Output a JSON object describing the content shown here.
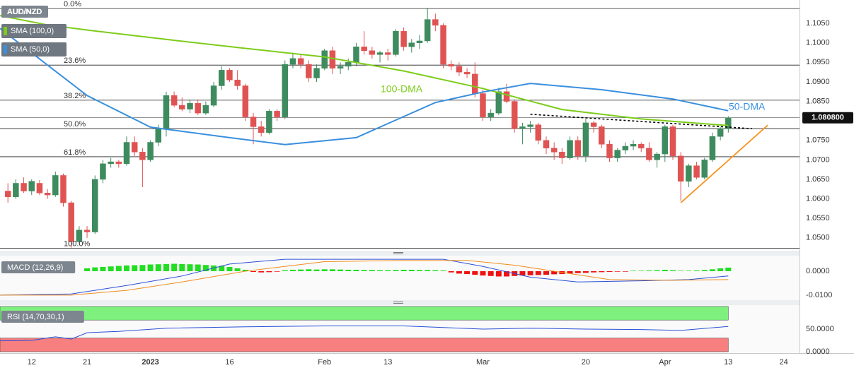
{
  "chart_data": [
    {
      "type": "candlestick",
      "title": "AUD/NZD",
      "up_color": "#3d8b5e",
      "down_color": "#e05353",
      "open": [
        1.062,
        1.0605,
        1.064,
        1.062,
        1.064,
        1.0615,
        1.061,
        1.066,
        1.059,
        1.049,
        1.052,
        1.0515,
        1.065,
        1.069,
        1.0695,
        1.069,
        1.0745,
        1.072,
        1.07,
        1.0745,
        1.078,
        1.0865,
        1.084,
        1.083,
        1.0845,
        1.082,
        1.084,
        1.089,
        1.093,
        1.0905,
        1.089,
        1.081,
        1.0785,
        1.077,
        1.0825,
        1.081,
        1.0945,
        1.096,
        1.0945,
        1.091,
        1.0935,
        1.098,
        1.0935,
        1.094,
        1.095,
        1.099,
        1.098,
        1.097,
        1.0975,
        1.097,
        1.103,
        1.099,
        1.1,
        1.1005,
        1.106,
        1.1045,
        1.0945,
        1.094,
        1.0925,
        1.092,
        1.087,
        1.081,
        1.082,
        1.0875,
        1.085,
        1.078,
        1.0785,
        1.079,
        1.075,
        1.073,
        1.072,
        1.0705,
        1.075,
        1.071,
        1.0795,
        1.0785,
        1.074,
        1.0705,
        1.0725,
        1.0735,
        1.074,
        1.073,
        1.07,
        1.0715,
        1.0785,
        1.071,
        1.0645,
        1.0685,
        1.0655,
        1.07,
        1.076,
        1.078
      ],
      "high": [
        1.064,
        1.065,
        1.0655,
        1.065,
        1.0648,
        1.0625,
        1.067,
        1.0665,
        1.0595,
        1.053,
        1.053,
        1.066,
        1.07,
        1.0705,
        1.07,
        1.076,
        1.076,
        1.073,
        1.075,
        1.079,
        1.0875,
        1.0875,
        1.086,
        1.0855,
        1.0855,
        1.085,
        1.09,
        1.094,
        1.0935,
        1.093,
        1.0895,
        1.082,
        1.08,
        1.083,
        1.083,
        1.0955,
        1.0975,
        1.097,
        1.0955,
        1.0945,
        1.0985,
        1.099,
        1.095,
        1.096,
        1.1,
        1.103,
        1.099,
        1.098,
        1.0985,
        1.1035,
        1.104,
        1.101,
        1.102,
        1.109,
        1.1075,
        1.105,
        1.0955,
        1.095,
        1.0935,
        1.095,
        1.088,
        1.083,
        1.0885,
        1.0895,
        1.0855,
        1.0795,
        1.08,
        1.0795,
        1.076,
        1.0745,
        1.073,
        1.076,
        1.076,
        1.0805,
        1.08,
        1.079,
        1.075,
        1.073,
        1.0745,
        1.075,
        1.0745,
        1.0745,
        1.072,
        1.079,
        1.079,
        1.072,
        1.069,
        1.0695,
        1.0705,
        1.077,
        1.0785,
        1.0812
      ],
      "low": [
        1.059,
        1.06,
        1.0615,
        1.061,
        1.061,
        1.06,
        1.0605,
        1.058,
        1.0475,
        1.0485,
        1.05,
        1.051,
        1.064,
        1.068,
        1.068,
        1.0685,
        1.071,
        1.063,
        1.0695,
        1.0735,
        1.076,
        1.0835,
        1.0825,
        1.082,
        1.0815,
        1.0815,
        1.0835,
        1.088,
        1.09,
        1.088,
        1.08,
        1.074,
        1.076,
        1.0765,
        1.08,
        1.0805,
        1.0935,
        1.0935,
        1.09,
        1.09,
        1.093,
        1.092,
        1.092,
        1.093,
        1.094,
        1.097,
        1.096,
        1.095,
        1.0955,
        1.0965,
        1.098,
        1.0975,
        1.0985,
        1.1,
        1.103,
        1.0935,
        1.093,
        1.0915,
        1.091,
        1.086,
        1.08,
        1.08,
        1.0815,
        1.0845,
        1.077,
        1.074,
        1.077,
        1.074,
        1.0715,
        1.07,
        1.069,
        1.07,
        1.07,
        1.0695,
        1.077,
        1.073,
        1.0695,
        1.0695,
        1.0715,
        1.0725,
        1.072,
        1.0695,
        1.068,
        1.0695,
        1.07,
        1.0595,
        1.063,
        1.065,
        1.065,
        1.0695,
        1.075,
        1.077
      ],
      "close": [
        1.0605,
        1.064,
        1.062,
        1.0645,
        1.0615,
        1.061,
        1.066,
        1.059,
        1.049,
        1.052,
        1.0515,
        1.065,
        1.069,
        1.0695,
        1.069,
        1.0745,
        1.072,
        1.07,
        1.0745,
        1.078,
        1.0865,
        1.084,
        1.083,
        1.0845,
        1.082,
        1.084,
        1.089,
        1.093,
        1.0905,
        1.089,
        1.081,
        1.0785,
        1.077,
        1.0825,
        1.081,
        1.0945,
        1.096,
        1.0945,
        1.091,
        1.0935,
        1.098,
        1.0935,
        1.094,
        1.095,
        1.099,
        1.098,
        1.097,
        1.0975,
        1.097,
        1.103,
        1.099,
        1.1,
        1.1005,
        1.106,
        1.1045,
        1.0945,
        1.094,
        1.0925,
        1.092,
        1.087,
        1.081,
        1.082,
        1.0875,
        1.085,
        1.078,
        1.0785,
        1.079,
        1.075,
        1.073,
        1.072,
        1.0705,
        1.075,
        1.071,
        1.0795,
        1.0785,
        1.074,
        1.0705,
        1.0725,
        1.0735,
        1.074,
        1.073,
        1.07,
        1.0715,
        1.0785,
        1.071,
        1.0645,
        1.0685,
        1.0655,
        1.07,
        1.076,
        1.078,
        1.0808
      ],
      "series": [
        {
          "name": "SMA (100,0)",
          "color": "#7ccc1a",
          "x": [
            -1,
            5,
            10,
            20,
            30,
            40,
            50,
            60,
            70,
            80,
            91
          ],
          "values": [
            1.107,
            1.1046,
            1.1033,
            1.1009,
            1.0986,
            1.0964,
            1.0928,
            1.0883,
            1.0829,
            1.0805,
            1.0788
          ]
        },
        {
          "name": "SMA (50,0)",
          "color": "#3a8fde",
          "x": [
            -1,
            10,
            18,
            28,
            35,
            44,
            48,
            54,
            60,
            66,
            75,
            84,
            91
          ],
          "values": [
            1.1037,
            1.0865,
            1.0784,
            1.0757,
            1.0739,
            1.0757,
            1.0793,
            1.0847,
            1.0874,
            1.0896,
            1.088,
            1.0856,
            1.0826
          ]
        }
      ],
      "annotations": [
        {
          "text": "100-DMA",
          "color": "#7ccc1a"
        },
        {
          "text": "50-DMA",
          "color": "#3a8fde"
        }
      ],
      "fib_levels": [
        {
          "label": "0.0%",
          "value": 1.1088
        },
        {
          "label": "23.6%",
          "value": 1.0943
        },
        {
          "label": "38.2%",
          "value": 1.0853
        },
        {
          "label": "50.0%",
          "value": 1.078
        },
        {
          "label": "61.8%",
          "value": 1.0708
        },
        {
          "label": "100.0%",
          "value": 1.0473
        }
      ],
      "trendlines": [
        {
          "x": [
            66,
            94
          ],
          "values": [
            1.0817,
            1.078
          ],
          "color": "#000000",
          "dashed": true
        },
        {
          "x": [
            85,
            96
          ],
          "values": [
            1.059,
            1.0789
          ],
          "color": "#f7931e",
          "dashed": false
        }
      ],
      "last_price": {
        "value": 1.0808,
        "label": "1.080800"
      },
      "ylim": [
        1.0467,
        1.111
      ],
      "yticks": [
        {
          "value": 1.105,
          "label": "1.1050"
        },
        {
          "value": 1.1,
          "label": "1.1000"
        },
        {
          "value": 1.095,
          "label": "1.0950"
        },
        {
          "value": 1.09,
          "label": "1.0900"
        },
        {
          "value": 1.085,
          "label": "1.0850"
        },
        {
          "value": 1.08,
          "label": "1.0800"
        },
        {
          "value": 1.075,
          "label": "1.0750"
        },
        {
          "value": 1.07,
          "label": "1.0700"
        },
        {
          "value": 1.065,
          "label": "1.0650"
        },
        {
          "value": 1.06,
          "label": "1.0600"
        },
        {
          "value": 1.055,
          "label": "1.0550"
        },
        {
          "value": 1.05,
          "label": "1.0500"
        }
      ],
      "xlim": [
        -1,
        100
      ],
      "xticks": [
        {
          "value": 3,
          "label": "12"
        },
        {
          "value": 10,
          "label": "21"
        },
        {
          "value": 18,
          "label": "2023"
        },
        {
          "value": 28,
          "label": "16"
        },
        {
          "value": 40,
          "label": "Feb"
        },
        {
          "value": 48,
          "label": "13"
        },
        {
          "value": 60,
          "label": "Mar"
        },
        {
          "value": 73,
          "label": "20"
        },
        {
          "value": 83,
          "label": "Apr"
        },
        {
          "value": 91,
          "label": "13"
        },
        {
          "value": 98,
          "label": "24"
        }
      ],
      "grid": true
    },
    {
      "type": "macd",
      "title": "MACD (12,26,9)",
      "histogram": {
        "up_color": "#22dd22",
        "down_color": "#ee1111",
        "values": [
          0,
          0,
          0,
          0,
          0,
          0,
          0,
          0,
          0,
          0,
          0.0012,
          0.0016,
          0.0018,
          0.002,
          0.0022,
          0.0024,
          0.0025,
          0.0026,
          0.0028,
          0.0029,
          0.003,
          0.0031,
          0.003,
          0.0029,
          0.0028,
          0.0026,
          0.0024,
          0.0022,
          0.0018,
          0.0012,
          0.0006,
          -0.0003,
          -0.0005,
          -0.0004,
          -0.0002,
          0.0004,
          0.0006,
          0.0007,
          0.0008,
          0.0007,
          0.0008,
          0.0008,
          0.0007,
          0.0006,
          0.0006,
          0.0005,
          0.0005,
          0.0004,
          0.0004,
          0.0005,
          0.0006,
          0.0006,
          0.0005,
          0.0005,
          0.0004,
          0.0003,
          -0.0005,
          -0.001,
          -0.0012,
          -0.0015,
          -0.0018,
          -0.002,
          -0.0022,
          -0.0022,
          -0.002,
          -0.0018,
          -0.0017,
          -0.0016,
          -0.0015,
          -0.0013,
          -0.0012,
          -0.001,
          -0.0008,
          -0.0007,
          -0.0005,
          -0.0004,
          -0.0003,
          -0.0002,
          -0.0002,
          0.0002,
          0.0002,
          0.0003,
          0.0004,
          0.0006,
          0.0004,
          0.0002,
          0.0002,
          0.0003,
          0.0005,
          0.0008,
          0.0012,
          0.0015
        ]
      },
      "series": [
        {
          "color": "#2b4fd8",
          "x": [
            -1,
            8,
            15,
            22,
            28,
            35,
            45,
            55,
            60,
            66,
            72,
            80,
            86,
            91
          ],
          "values": [
            -0.01,
            -0.0095,
            -0.006,
            -0.002,
            0.003,
            0.005,
            0.005,
            0.005,
            0.002,
            -0.0025,
            -0.0045,
            -0.004,
            -0.0035,
            -0.002
          ]
        },
        {
          "color": "#f08c1e",
          "x": [
            -1,
            8,
            15,
            22,
            30,
            40,
            50,
            58,
            64,
            70,
            76,
            84,
            91
          ],
          "values": [
            -0.01,
            -0.01,
            -0.008,
            -0.0045,
            0.0,
            0.004,
            0.0045,
            0.0045,
            0.0025,
            -0.0005,
            -0.0035,
            -0.0038,
            -0.0035
          ]
        }
      ],
      "ylim": [
        -0.0121,
        0.0065
      ],
      "yticks": [
        {
          "value": 0,
          "label": "0.0000"
        },
        {
          "value": -0.01,
          "label": "-0.0100"
        }
      ]
    },
    {
      "type": "rsi",
      "title": "RSI (14,70,30,1)",
      "series": [
        {
          "color": "#2b4fd8",
          "x": [
            -1,
            3,
            6,
            8,
            10,
            14,
            20,
            30,
            40,
            50,
            60,
            66,
            73,
            80,
            85,
            91
          ],
          "values": [
            24,
            25,
            33,
            28,
            42,
            45,
            52,
            55,
            57,
            57,
            50,
            52,
            50,
            49,
            47,
            56
          ]
        }
      ],
      "bands": [
        {
          "from": 70,
          "to": 100,
          "color": "#7ef07e"
        },
        {
          "from": 0,
          "to": 30,
          "color": "#f77f7f"
        }
      ],
      "ylim": [
        -3.1,
        103.1
      ],
      "yticks": [
        {
          "value": 50,
          "label": "50.0000"
        },
        {
          "value": 0,
          "label": "0.0000"
        }
      ]
    }
  ]
}
